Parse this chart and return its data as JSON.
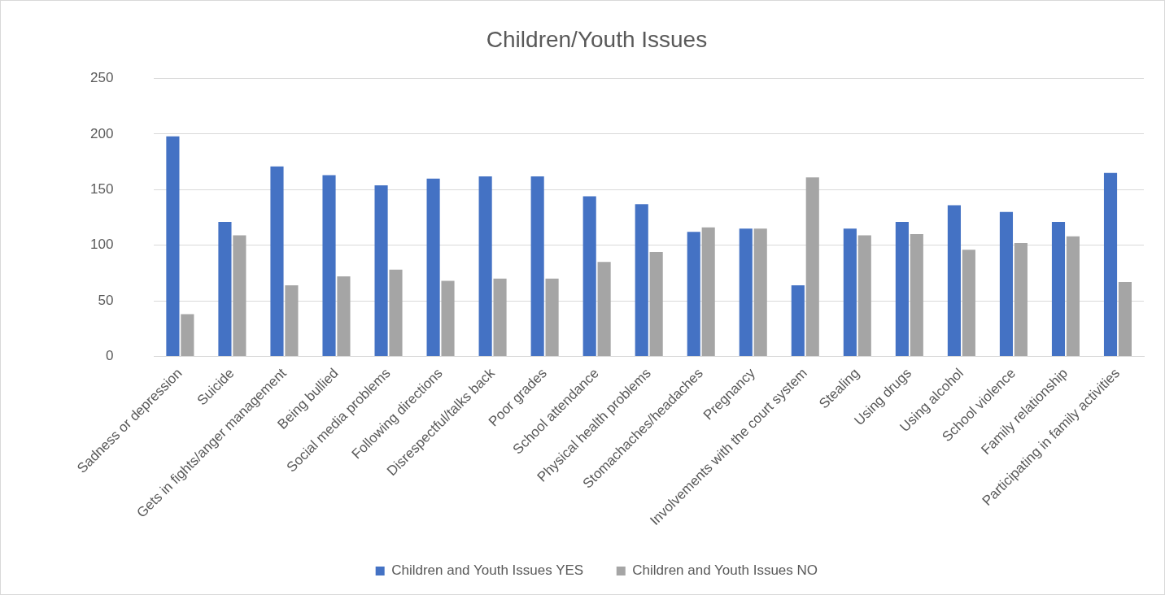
{
  "chart_data": {
    "type": "bar",
    "title": "Children/Youth Issues",
    "categories": [
      "Sadness or depression",
      "Suicide",
      "Gets in fights/anger management",
      "Being bullied",
      "Social media problems",
      "Following directions",
      "Disrespectful/talks back",
      "Poor grades",
      "School attendance",
      "Physical health problems",
      "Stomachaches/headaches",
      "Pregnancy",
      "Involvements with the court system",
      "Stealing",
      "Using drugs",
      "Using alcohol",
      "School violence",
      "Family relationship",
      "Participating in family activities"
    ],
    "series": [
      {
        "name": "Children and Youth Issues YES",
        "color": "#4472c4",
        "values": [
          198,
          121,
          171,
          163,
          154,
          160,
          162,
          162,
          144,
          137,
          112,
          115,
          64,
          115,
          121,
          136,
          130,
          121,
          165
        ]
      },
      {
        "name": "Children and Youth Issues NO",
        "color": "#a5a5a5",
        "values": [
          38,
          109,
          64,
          72,
          78,
          68,
          70,
          70,
          85,
          94,
          116,
          115,
          161,
          109,
          110,
          96,
          102,
          108,
          67
        ]
      }
    ],
    "ylim": [
      0,
      250
    ],
    "yticks": [
      0,
      50,
      100,
      150,
      200,
      250
    ],
    "grid": "y",
    "legend": "bottom"
  }
}
